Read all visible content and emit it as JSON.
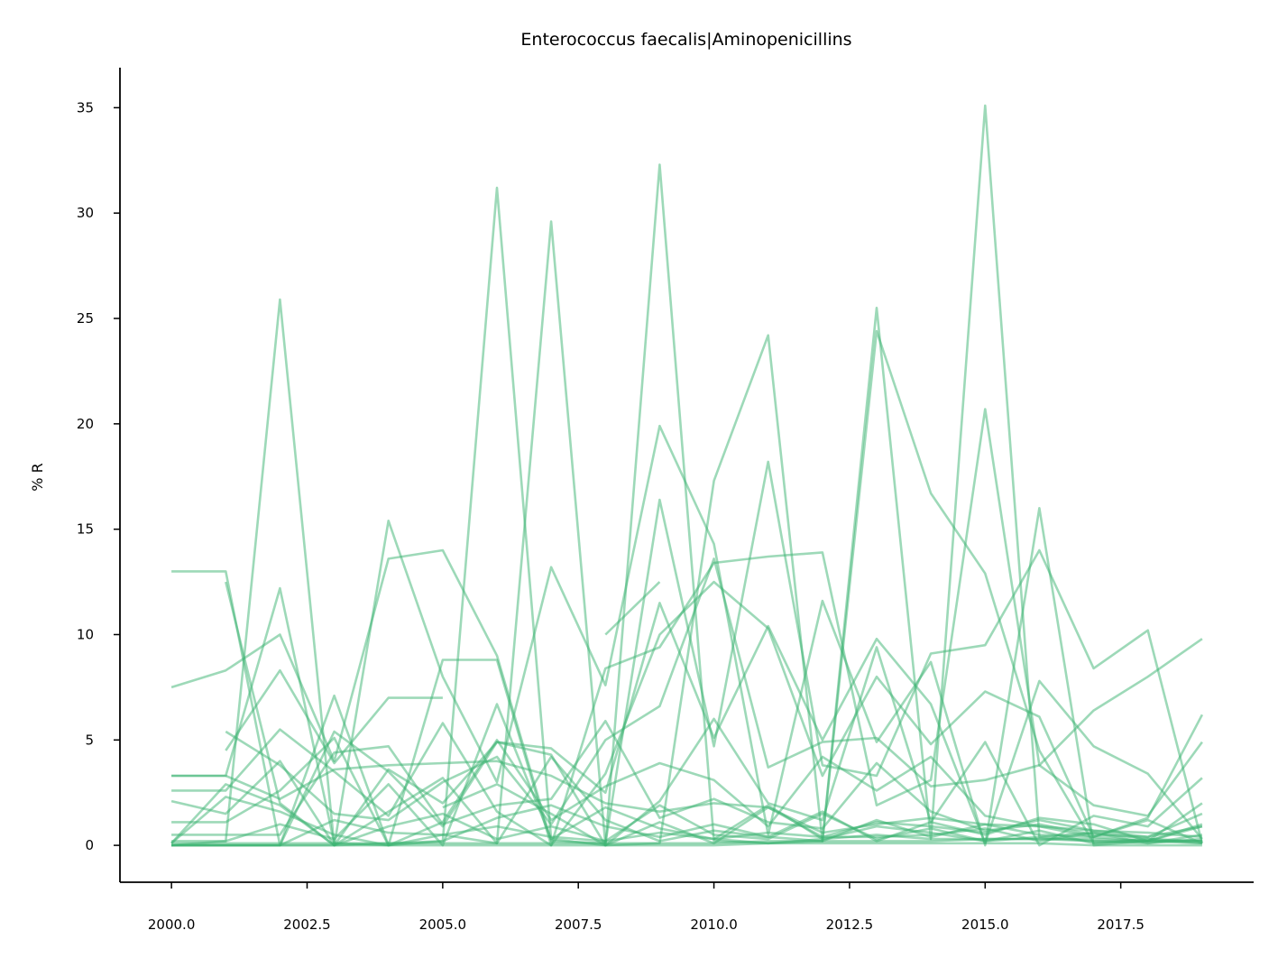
{
  "chart_data": {
    "type": "line",
    "title": "Enterococcus faecalis|Aminopenicillins",
    "xlabel": "",
    "ylabel": "% R",
    "xlim": [
      1999.05,
      2019.95
    ],
    "ylim": [
      -1.75,
      36.9
    ],
    "x_ticks": [
      "2000.0",
      "2002.5",
      "2005.0",
      "2007.5",
      "2010.0",
      "2012.5",
      "2015.0",
      "2017.5"
    ],
    "x_tick_values": [
      2000,
      2002.5,
      2005,
      2007.5,
      2010,
      2012.5,
      2015,
      2017.5
    ],
    "y_ticks": [
      "0",
      "5",
      "10",
      "15",
      "20",
      "25",
      "30",
      "35"
    ],
    "y_tick_values": [
      0,
      5,
      10,
      15,
      20,
      25,
      30,
      35
    ],
    "color": "#3cb371",
    "alpha": 0.5,
    "grid": false,
    "legend": "none",
    "x": [
      2000,
      2001,
      2002,
      2003,
      2004,
      2005,
      2006,
      2007,
      2008,
      2009,
      2010,
      2011,
      2012,
      2013,
      2014,
      2015,
      2016,
      2017,
      2018,
      2019
    ],
    "series": [
      {
        "values": [
          0.2,
          0.2,
          25.9,
          0.0,
          0.1,
          0.2,
          31.2,
          0.3,
          0.0,
          32.3,
          0.2,
          0.1,
          0.2,
          25.5,
          0.3,
          35.1,
          0.4,
          0.2,
          0.1,
          0.3
        ]
      },
      {
        "values": [
          13.0,
          13.0,
          0.0,
          7.1,
          0.0,
          0.5,
          0.1,
          29.6,
          0.0,
          0.1,
          17.3,
          24.2,
          0.2,
          24.4,
          16.7,
          12.9,
          4.5,
          0.1,
          0.2,
          0.1
        ]
      },
      {
        "values": [
          null,
          12.5,
          2.0,
          0.0,
          15.4,
          8.0,
          3.0,
          13.2,
          7.6,
          19.9,
          14.3,
          0.5,
          11.6,
          4.9,
          8.7,
          0.0,
          16.0,
          0.0,
          0.2,
          1.0
        ]
      },
      {
        "values": [
          7.5,
          8.3,
          10.0,
          4.0,
          13.6,
          14.0,
          9.0,
          0.2,
          0.1,
          16.4,
          4.7,
          18.2,
          3.8,
          3.3,
          9.1,
          9.5,
          14.0,
          8.4,
          10.2,
          0.1
        ]
      },
      {
        "values": [
          3.3,
          3.3,
          12.2,
          0.1,
          0.0,
          8.8,
          8.8,
          0.0,
          8.4,
          9.4,
          13.4,
          13.7,
          13.9,
          1.9,
          3.1,
          20.7,
          3.8,
          6.4,
          8.0,
          9.8
        ]
      },
      {
        "values": [
          null,
          4.5,
          8.3,
          3.9,
          7.0,
          7.0,
          null,
          null,
          10.0,
          12.5,
          null,
          null,
          null,
          null,
          null,
          null,
          null,
          null,
          null,
          null
        ]
      },
      {
        "values": [
          0.0,
          0.0,
          0.0,
          5.4,
          3.5,
          0.9,
          4.9,
          4.6,
          2.5,
          11.5,
          5.1,
          10.4,
          5.0,
          9.8,
          6.7,
          0.1,
          7.8,
          4.7,
          3.4,
          0.3
        ]
      },
      {
        "values": [
          2.6,
          2.6,
          5.5,
          3.5,
          1.4,
          5.8,
          1.6,
          0.0,
          3.4,
          10.0,
          12.5,
          10.3,
          3.3,
          8.0,
          4.8,
          7.3,
          6.1,
          0.4,
          1.3,
          6.2
        ]
      },
      {
        "values": [
          null,
          5.4,
          3.8,
          1.5,
          1.2,
          3.0,
          4.2,
          1.0,
          5.0,
          6.6,
          13.6,
          3.7,
          4.9,
          5.1,
          2.8,
          3.1,
          3.8,
          1.9,
          1.4,
          4.9
        ]
      },
      {
        "values": [
          2.1,
          1.5,
          4.0,
          0.0,
          3.6,
          2.0,
          4.9,
          4.3,
          0.0,
          2.1,
          6.0,
          2.0,
          1.2,
          9.4,
          1.1,
          4.9,
          0.0,
          1.4,
          0.9,
          3.2
        ]
      },
      {
        "values": [
          1.1,
          1.1,
          2.6,
          5.1,
          0.0,
          1.1,
          5.0,
          1.2,
          2.8,
          3.9,
          3.1,
          0.9,
          4.2,
          2.6,
          4.2,
          1.4,
          0.9,
          0.4,
          0.2,
          2.0
        ]
      },
      {
        "values": [
          0.5,
          0.5,
          0.5,
          4.4,
          4.7,
          1.0,
          1.9,
          2.2,
          5.9,
          1.3,
          2.2,
          1.1,
          0.8,
          3.9,
          1.6,
          0.7,
          1.0,
          0.5,
          0.4,
          1.5
        ]
      },
      {
        "values": [
          3.3,
          3.3,
          2.2,
          3.6,
          3.8,
          3.9,
          4.0,
          3.3,
          2.0,
          1.6,
          2.0,
          1.8,
          0.6,
          1.0,
          1.3,
          1.0,
          0.9,
          0.7,
          0.6,
          0.4
        ]
      },
      {
        "values": [
          0.1,
          2.9,
          1.9,
          0.0,
          1.6,
          3.2,
          0.1,
          4.2,
          1.2,
          0.2,
          0.7,
          0.4,
          1.6,
          0.2,
          1.1,
          0.5,
          1.3,
          1.0,
          0.2,
          0.9
        ]
      },
      {
        "values": [
          0.0,
          0.2,
          1.0,
          0.3,
          2.9,
          0.0,
          6.7,
          0.3,
          1.8,
          0.8,
          0.3,
          1.9,
          0.3,
          0.9,
          0.6,
          0.2,
          0.7,
          0.1,
          0.3,
          0.2
        ]
      },
      {
        "values": [
          0.0,
          0.0,
          0.0,
          0.0,
          0.9,
          1.5,
          0.3,
          0.9,
          0.2,
          1.9,
          0.5,
          0.3,
          1.5,
          0.3,
          0.8,
          0.2,
          0.4,
          0.6,
          0.1,
          0.5
        ]
      },
      {
        "values": [
          0.1,
          2.3,
          1.6,
          0.5,
          0.0,
          0.2,
          1.3,
          1.9,
          0.9,
          0.4,
          1.0,
          0.4,
          0.2,
          1.2,
          0.4,
          1.0,
          0.5,
          0.4,
          1.2,
          0.1
        ]
      },
      {
        "values": [
          0.0,
          0.0,
          0.0,
          1.2,
          0.6,
          0.5,
          0.9,
          0.4,
          0.2,
          0.6,
          0.3,
          0.6,
          0.4,
          0.4,
          0.5,
          0.8,
          0.2,
          0.6,
          0.3,
          0.1
        ]
      },
      {
        "values": [
          0.0,
          0.0,
          0.0,
          0.0,
          0.0,
          0.0,
          0.0,
          0.0,
          0.0,
          0.0,
          0.0,
          0.1,
          0.1,
          0.1,
          0.1,
          0.1,
          0.1,
          0.0,
          0.0,
          0.0
        ]
      },
      {
        "values": [
          0.1,
          0.1,
          0.1,
          0.1,
          0.1,
          0.1,
          0.1,
          0.1,
          0.1,
          0.1,
          0.1,
          0.2,
          0.2,
          0.2,
          0.2,
          0.3,
          0.3,
          0.3,
          0.2,
          0.2
        ]
      },
      {
        "values": [
          null,
          null,
          null,
          null,
          null,
          1.8,
          2.9,
          1.5,
          0.0,
          1.1,
          0.1,
          1.8,
          0.4,
          1.1,
          0.9,
          0.6,
          1.2,
          0.7,
          0.4,
          0.9
        ]
      },
      {
        "values": [
          null,
          null,
          null,
          null,
          null,
          null,
          null,
          null,
          null,
          null,
          0.3,
          0.1,
          0.3,
          0.5,
          0.3,
          0.3,
          0.3,
          0.2,
          0.2,
          0.2
        ]
      }
    ]
  }
}
